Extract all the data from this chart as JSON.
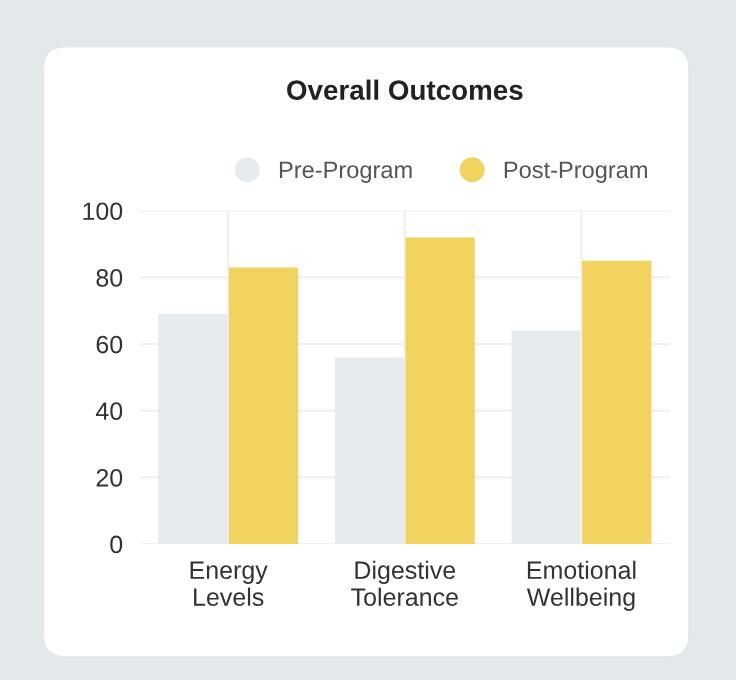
{
  "chart_data": {
    "type": "bar",
    "title": "Overall Outcomes",
    "categories": [
      "Energy\nLevels",
      "Digestive\nTolerance",
      "Emotional\nWellbeing"
    ],
    "series": [
      {
        "name": "Pre-Program",
        "color": "#e8ebee",
        "values": [
          69,
          56,
          64
        ]
      },
      {
        "name": "Post-Program",
        "color": "#f2d360",
        "values": [
          83,
          92,
          85
        ]
      }
    ],
    "ylim": [
      0,
      100
    ],
    "yticks": [
      0,
      20,
      40,
      60,
      80,
      100
    ],
    "grid": true,
    "legend": "top right"
  }
}
